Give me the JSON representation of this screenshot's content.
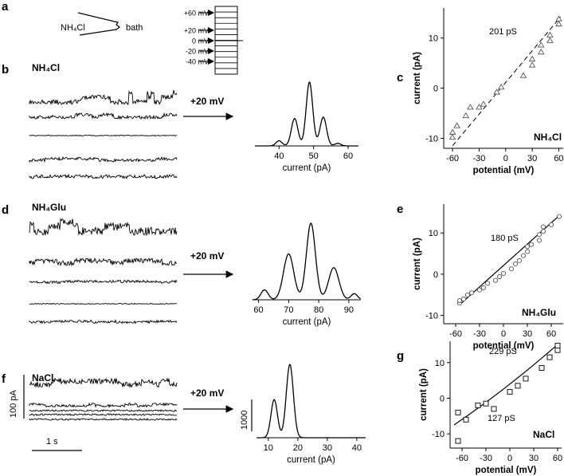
{
  "panel_labels": [
    "a",
    "b",
    "c",
    "d",
    "e",
    "f",
    "g"
  ],
  "diagram": {
    "pipette_solution": "NH₄Cl",
    "bath_label": "bath",
    "voltage_steps": [
      "+60 mV",
      "+20 mV",
      "0 mV",
      "-20 mV",
      "-40 mV"
    ]
  },
  "traces": {
    "b": {
      "label": "NH₄Cl",
      "arrow_label": "+20 mV"
    },
    "d": {
      "label": "NH₄Glu",
      "arrow_label": "+20 mV"
    },
    "f": {
      "label": "NaCl",
      "arrow_label": "+20 mV"
    },
    "scale": {
      "y": "100 pA",
      "x": "1 s"
    }
  },
  "chart_data": [
    {
      "id": "b-hist",
      "type": "line",
      "xlabel": "current (pA)",
      "xlim": [
        33,
        63
      ],
      "xticks": [
        40,
        50,
        60
      ],
      "peaks": [
        {
          "x": 40,
          "height": 0.08,
          "width": 0.9
        },
        {
          "x": 44.5,
          "height": 0.43,
          "width": 0.95
        },
        {
          "x": 48.8,
          "height": 1.0,
          "width": 0.95
        },
        {
          "x": 52.8,
          "height": 0.45,
          "width": 0.95
        },
        {
          "x": 57,
          "height": 0.04,
          "width": 0.9
        }
      ]
    },
    {
      "id": "c",
      "type": "scatter",
      "xlabel": "potential (mV)",
      "ylabel": "current (pA)",
      "xlim": [
        -70,
        65
      ],
      "ylim": [
        -12,
        16
      ],
      "xticks": [
        -60,
        -30,
        0,
        30,
        60
      ],
      "yticks": [
        -10,
        0,
        10
      ],
      "annotation": "201 pS",
      "corner_label": "NH₄Cl",
      "marker": "triangle",
      "points": [
        [
          -60,
          -9.8
        ],
        [
          -60,
          -8.8
        ],
        [
          -55,
          -7.5
        ],
        [
          -45,
          -5.5
        ],
        [
          -40,
          -3.8
        ],
        [
          -30,
          -3.8
        ],
        [
          -25,
          -3.2
        ],
        [
          -10,
          -0.8
        ],
        [
          -5,
          0.2
        ],
        [
          20,
          2.5
        ],
        [
          30,
          4.6
        ],
        [
          30,
          5.8
        ],
        [
          40,
          7.2
        ],
        [
          40,
          8.6
        ],
        [
          50,
          9.5
        ],
        [
          50,
          10.6
        ],
        [
          60,
          12.8
        ],
        [
          60,
          13.8
        ]
      ],
      "fit": {
        "x": [
          -60,
          62
        ],
        "y": [
          -11.5,
          14.2
        ],
        "style": "dashed"
      }
    },
    {
      "id": "d-hist",
      "type": "line",
      "xlabel": "current (pA)",
      "xlim": [
        58,
        94
      ],
      "xticks": [
        60,
        70,
        80,
        90
      ],
      "peaks": [
        {
          "x": 62,
          "height": 0.13,
          "width": 1.2
        },
        {
          "x": 70,
          "height": 0.6,
          "width": 1.7
        },
        {
          "x": 77.4,
          "height": 1.0,
          "width": 1.5
        },
        {
          "x": 85,
          "height": 0.42,
          "width": 1.7
        },
        {
          "x": 91.8,
          "height": 0.08,
          "width": 1.1
        }
      ]
    },
    {
      "id": "e",
      "type": "scatter",
      "xlabel": "potential (mV)",
      "ylabel": "current (pA)",
      "xlim": [
        -75,
        75
      ],
      "ylim": [
        -12,
        17
      ],
      "xticks": [
        -60,
        -30,
        0,
        30,
        60
      ],
      "yticks": [
        -10,
        0,
        10
      ],
      "annotation": "180 pS",
      "corner_label": "NH₄Glu",
      "marker": "circle",
      "points": [
        [
          -55,
          -7
        ],
        [
          -55,
          -6.4
        ],
        [
          -50,
          -6
        ],
        [
          -45,
          -5
        ],
        [
          -40,
          -4.5
        ],
        [
          -30,
          -3.8
        ],
        [
          -25,
          -3.3
        ],
        [
          -20,
          -2.2
        ],
        [
          -10,
          -1.5
        ],
        [
          -5,
          -0.6
        ],
        [
          0,
          0.2
        ],
        [
          10,
          1.3
        ],
        [
          15,
          2.5
        ],
        [
          20,
          3.3
        ],
        [
          25,
          4.5
        ],
        [
          30,
          5.5
        ],
        [
          30,
          6.7
        ],
        [
          35,
          7.2
        ],
        [
          45,
          8.2
        ],
        [
          45,
          9.6
        ],
        [
          50,
          10.4
        ],
        [
          50,
          11.5
        ],
        [
          60,
          12
        ],
        [
          70,
          14
        ]
      ],
      "fit": {
        "x": [
          -55,
          70
        ],
        "y": [
          -7.4,
          14.2
        ],
        "style": "solid"
      }
    },
    {
      "id": "f-hist",
      "type": "line",
      "xlabel": "current (pA)",
      "xlim": [
        6,
        43
      ],
      "xticks": [
        10,
        20,
        30,
        40
      ],
      "yscale_label": "1000",
      "peaks": [
        {
          "x": 12,
          "height": 0.52,
          "width": 1.1
        },
        {
          "x": 17.3,
          "height": 1.0,
          "width": 1.2
        }
      ]
    },
    {
      "id": "g",
      "type": "scatter",
      "xlabel": "potential (mV)",
      "ylabel": "current (pA)",
      "xlim": [
        -75,
        65
      ],
      "ylim": [
        -14,
        16
      ],
      "xticks": [
        -60,
        -30,
        0,
        30,
        60
      ],
      "yticks": [
        -10,
        0,
        10
      ],
      "annotations": [
        "229 pS",
        "127 pS"
      ],
      "corner_label": "NaCl",
      "marker": "square",
      "points": [
        [
          -65,
          -12
        ],
        [
          -65,
          -4
        ],
        [
          -55,
          -6
        ],
        [
          -40,
          -2
        ],
        [
          -30,
          -1.5
        ],
        [
          -20,
          -3
        ],
        [
          0,
          1.8
        ],
        [
          10,
          3.5
        ],
        [
          20,
          5.5
        ],
        [
          40,
          8.5
        ],
        [
          50,
          11.5
        ],
        [
          60,
          13.5
        ],
        [
          60,
          14.8
        ]
      ],
      "fit": {
        "x": [
          -70,
          60
        ],
        "y": [
          -7.5,
          15.1
        ],
        "style": "solid",
        "curved": true
      }
    }
  ]
}
